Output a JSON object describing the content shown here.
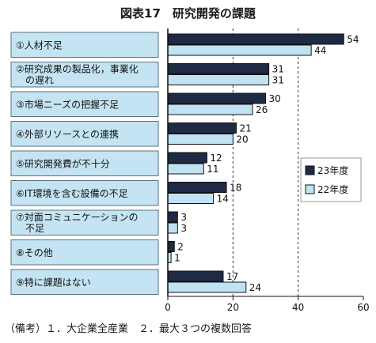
{
  "chart_data": {
    "type": "bar",
    "title": "図表17　研究開発の課題",
    "categories": [
      [
        "①人材不足"
      ],
      [
        "②研究成果の製品化，事業化",
        "　の遅れ"
      ],
      [
        "③市場ニーズの把握不足"
      ],
      [
        "④外部リソースとの連携"
      ],
      [
        "⑤研究開発費が不十分"
      ],
      [
        "⑥IT環境を含む設備の不足"
      ],
      [
        "⑦対面コミュニケーションの",
        "　不足"
      ],
      [
        "⑧その他"
      ],
      [
        "⑨特に課題はない"
      ]
    ],
    "series": [
      {
        "name": "23年度",
        "values": [
          54,
          31,
          30,
          21,
          12,
          18,
          3,
          2,
          17
        ]
      },
      {
        "name": "22年度",
        "values": [
          44,
          31,
          26,
          20,
          11,
          14,
          3,
          1,
          24
        ]
      }
    ],
    "xlim": [
      0,
      60
    ],
    "xticks": [
      0,
      20,
      40,
      60
    ],
    "legend_position": "right",
    "gridlines": "dashed vertical at 20 and 40",
    "colors": {
      "series_23": "#1f2a44",
      "series_22": "#bfe3f3",
      "label_panel": "#c5e4f3"
    }
  },
  "footnote": "（備考）１．大企業全産業　２．最大３つの複数回答"
}
